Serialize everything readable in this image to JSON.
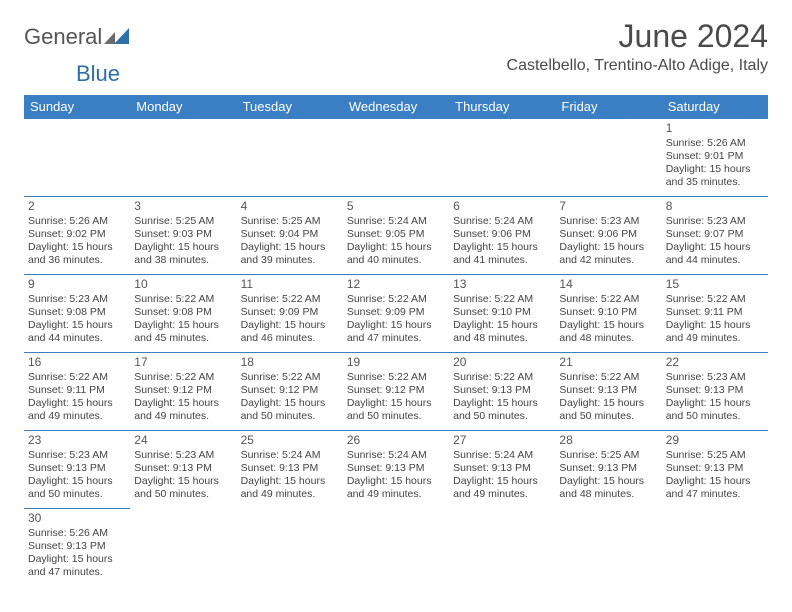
{
  "header": {
    "logo_prefix": "General",
    "logo_suffix": "Blue",
    "month_title": "June 2024",
    "location": "Castelbello, Trentino-Alto Adige, Italy"
  },
  "styling": {
    "header_bg": "#3a7fc4",
    "header_text": "#ffffff",
    "cell_border": "#3a7fc4",
    "body_text": "#444444",
    "title_color": "#4a4a4a",
    "logo_gray": "#555555",
    "logo_blue": "#2f6fa8",
    "page_bg": "#ffffff",
    "triangle_gray": "#6b6b6b",
    "triangle_blue": "#2f6fa8",
    "font_family": "Arial",
    "title_fontsize": 32,
    "location_fontsize": 16,
    "dayheader_fontsize": 13,
    "cell_fontsize": 10.5
  },
  "day_headers": [
    "Sunday",
    "Monday",
    "Tuesday",
    "Wednesday",
    "Thursday",
    "Friday",
    "Saturday"
  ],
  "weeks": [
    [
      null,
      null,
      null,
      null,
      null,
      null,
      {
        "n": "1",
        "sr": "Sunrise: 5:26 AM",
        "ss": "Sunset: 9:01 PM",
        "dl1": "Daylight: 15 hours",
        "dl2": "and 35 minutes."
      }
    ],
    [
      {
        "n": "2",
        "sr": "Sunrise: 5:26 AM",
        "ss": "Sunset: 9:02 PM",
        "dl1": "Daylight: 15 hours",
        "dl2": "and 36 minutes."
      },
      {
        "n": "3",
        "sr": "Sunrise: 5:25 AM",
        "ss": "Sunset: 9:03 PM",
        "dl1": "Daylight: 15 hours",
        "dl2": "and 38 minutes."
      },
      {
        "n": "4",
        "sr": "Sunrise: 5:25 AM",
        "ss": "Sunset: 9:04 PM",
        "dl1": "Daylight: 15 hours",
        "dl2": "and 39 minutes."
      },
      {
        "n": "5",
        "sr": "Sunrise: 5:24 AM",
        "ss": "Sunset: 9:05 PM",
        "dl1": "Daylight: 15 hours",
        "dl2": "and 40 minutes."
      },
      {
        "n": "6",
        "sr": "Sunrise: 5:24 AM",
        "ss": "Sunset: 9:06 PM",
        "dl1": "Daylight: 15 hours",
        "dl2": "and 41 minutes."
      },
      {
        "n": "7",
        "sr": "Sunrise: 5:23 AM",
        "ss": "Sunset: 9:06 PM",
        "dl1": "Daylight: 15 hours",
        "dl2": "and 42 minutes."
      },
      {
        "n": "8",
        "sr": "Sunrise: 5:23 AM",
        "ss": "Sunset: 9:07 PM",
        "dl1": "Daylight: 15 hours",
        "dl2": "and 44 minutes."
      }
    ],
    [
      {
        "n": "9",
        "sr": "Sunrise: 5:23 AM",
        "ss": "Sunset: 9:08 PM",
        "dl1": "Daylight: 15 hours",
        "dl2": "and 44 minutes."
      },
      {
        "n": "10",
        "sr": "Sunrise: 5:22 AM",
        "ss": "Sunset: 9:08 PM",
        "dl1": "Daylight: 15 hours",
        "dl2": "and 45 minutes."
      },
      {
        "n": "11",
        "sr": "Sunrise: 5:22 AM",
        "ss": "Sunset: 9:09 PM",
        "dl1": "Daylight: 15 hours",
        "dl2": "and 46 minutes."
      },
      {
        "n": "12",
        "sr": "Sunrise: 5:22 AM",
        "ss": "Sunset: 9:09 PM",
        "dl1": "Daylight: 15 hours",
        "dl2": "and 47 minutes."
      },
      {
        "n": "13",
        "sr": "Sunrise: 5:22 AM",
        "ss": "Sunset: 9:10 PM",
        "dl1": "Daylight: 15 hours",
        "dl2": "and 48 minutes."
      },
      {
        "n": "14",
        "sr": "Sunrise: 5:22 AM",
        "ss": "Sunset: 9:10 PM",
        "dl1": "Daylight: 15 hours",
        "dl2": "and 48 minutes."
      },
      {
        "n": "15",
        "sr": "Sunrise: 5:22 AM",
        "ss": "Sunset: 9:11 PM",
        "dl1": "Daylight: 15 hours",
        "dl2": "and 49 minutes."
      }
    ],
    [
      {
        "n": "16",
        "sr": "Sunrise: 5:22 AM",
        "ss": "Sunset: 9:11 PM",
        "dl1": "Daylight: 15 hours",
        "dl2": "and 49 minutes."
      },
      {
        "n": "17",
        "sr": "Sunrise: 5:22 AM",
        "ss": "Sunset: 9:12 PM",
        "dl1": "Daylight: 15 hours",
        "dl2": "and 49 minutes."
      },
      {
        "n": "18",
        "sr": "Sunrise: 5:22 AM",
        "ss": "Sunset: 9:12 PM",
        "dl1": "Daylight: 15 hours",
        "dl2": "and 50 minutes."
      },
      {
        "n": "19",
        "sr": "Sunrise: 5:22 AM",
        "ss": "Sunset: 9:12 PM",
        "dl1": "Daylight: 15 hours",
        "dl2": "and 50 minutes."
      },
      {
        "n": "20",
        "sr": "Sunrise: 5:22 AM",
        "ss": "Sunset: 9:13 PM",
        "dl1": "Daylight: 15 hours",
        "dl2": "and 50 minutes."
      },
      {
        "n": "21",
        "sr": "Sunrise: 5:22 AM",
        "ss": "Sunset: 9:13 PM",
        "dl1": "Daylight: 15 hours",
        "dl2": "and 50 minutes."
      },
      {
        "n": "22",
        "sr": "Sunrise: 5:23 AM",
        "ss": "Sunset: 9:13 PM",
        "dl1": "Daylight: 15 hours",
        "dl2": "and 50 minutes."
      }
    ],
    [
      {
        "n": "23",
        "sr": "Sunrise: 5:23 AM",
        "ss": "Sunset: 9:13 PM",
        "dl1": "Daylight: 15 hours",
        "dl2": "and 50 minutes."
      },
      {
        "n": "24",
        "sr": "Sunrise: 5:23 AM",
        "ss": "Sunset: 9:13 PM",
        "dl1": "Daylight: 15 hours",
        "dl2": "and 50 minutes."
      },
      {
        "n": "25",
        "sr": "Sunrise: 5:24 AM",
        "ss": "Sunset: 9:13 PM",
        "dl1": "Daylight: 15 hours",
        "dl2": "and 49 minutes."
      },
      {
        "n": "26",
        "sr": "Sunrise: 5:24 AM",
        "ss": "Sunset: 9:13 PM",
        "dl1": "Daylight: 15 hours",
        "dl2": "and 49 minutes."
      },
      {
        "n": "27",
        "sr": "Sunrise: 5:24 AM",
        "ss": "Sunset: 9:13 PM",
        "dl1": "Daylight: 15 hours",
        "dl2": "and 49 minutes."
      },
      {
        "n": "28",
        "sr": "Sunrise: 5:25 AM",
        "ss": "Sunset: 9:13 PM",
        "dl1": "Daylight: 15 hours",
        "dl2": "and 48 minutes."
      },
      {
        "n": "29",
        "sr": "Sunrise: 5:25 AM",
        "ss": "Sunset: 9:13 PM",
        "dl1": "Daylight: 15 hours",
        "dl2": "and 47 minutes."
      }
    ],
    [
      {
        "n": "30",
        "sr": "Sunrise: 5:26 AM",
        "ss": "Sunset: 9:13 PM",
        "dl1": "Daylight: 15 hours",
        "dl2": "and 47 minutes."
      },
      null,
      null,
      null,
      null,
      null,
      null
    ]
  ]
}
